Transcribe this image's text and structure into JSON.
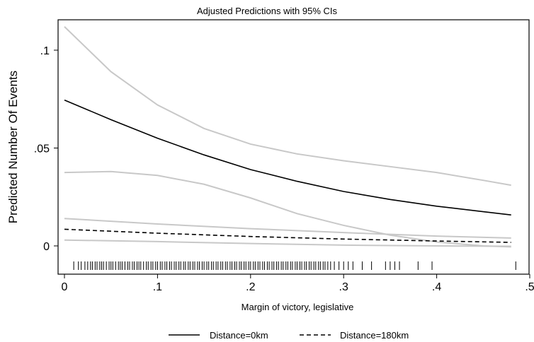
{
  "chart_data": {
    "type": "line",
    "title": "Adjusted Predictions with 95% CIs",
    "xlabel": "Margin of victory, legislative",
    "ylabel": "Predicted Number Of Events",
    "xlim": [
      0,
      0.485
    ],
    "ylim": [
      -0.01,
      0.11
    ],
    "x_ticks": [
      0,
      0.1,
      0.2,
      0.3,
      0.4,
      0.5
    ],
    "x_tick_labels": [
      "0",
      ".1",
      ".2",
      ".3",
      ".4",
      ".5"
    ],
    "y_ticks": [
      0,
      0.05,
      0.1
    ],
    "y_tick_labels": [
      "0",
      ".05",
      ".1"
    ],
    "grid": false,
    "legend_position": "bottom",
    "series": [
      {
        "name": "Distance=0km",
        "style": "solid",
        "color": "#000000",
        "x": [
          0,
          0.05,
          0.1,
          0.15,
          0.2,
          0.25,
          0.3,
          0.35,
          0.4,
          0.45,
          0.48
        ],
        "y": [
          0.0745,
          0.0645,
          0.055,
          0.0465,
          0.039,
          0.033,
          0.0278,
          0.0237,
          0.0203,
          0.0175,
          0.0158
        ]
      },
      {
        "name": "Distance=180km",
        "style": "dashed",
        "color": "#000000",
        "x": [
          0,
          0.1,
          0.2,
          0.3,
          0.4,
          0.48
        ],
        "y": [
          0.0085,
          0.0065,
          0.0048,
          0.0035,
          0.0025,
          0.0018
        ]
      }
    ],
    "confidence_bands": [
      {
        "series": "Distance=0km",
        "color": "#c8c8c8",
        "x": [
          0,
          0.05,
          0.1,
          0.15,
          0.2,
          0.25,
          0.3,
          0.35,
          0.4,
          0.45,
          0.48
        ],
        "upper": [
          0.112,
          0.089,
          0.072,
          0.06,
          0.052,
          0.047,
          0.0435,
          0.0405,
          0.0375,
          0.0335,
          0.031
        ],
        "lower": [
          0.0375,
          0.038,
          0.036,
          0.0315,
          0.0245,
          0.0165,
          0.0105,
          0.0055,
          0.002,
          0.0,
          -0.0005
        ]
      },
      {
        "series": "Distance=180km",
        "color": "#c8c8c8",
        "x": [
          0,
          0.1,
          0.2,
          0.3,
          0.4,
          0.48
        ],
        "upper": [
          0.014,
          0.0112,
          0.0088,
          0.0068,
          0.005,
          0.004
        ],
        "lower": [
          0.003,
          0.0022,
          0.0012,
          0.0004,
          0.0,
          -0.0002
        ]
      }
    ],
    "rug_x": [
      0.01,
      0.015,
      0.018,
      0.022,
      0.025,
      0.028,
      0.03,
      0.033,
      0.035,
      0.038,
      0.04,
      0.042,
      0.045,
      0.048,
      0.05,
      0.052,
      0.055,
      0.058,
      0.06,
      0.062,
      0.065,
      0.068,
      0.07,
      0.073,
      0.075,
      0.078,
      0.08,
      0.082,
      0.085,
      0.088,
      0.09,
      0.093,
      0.095,
      0.098,
      0.1,
      0.103,
      0.105,
      0.108,
      0.11,
      0.113,
      0.115,
      0.118,
      0.12,
      0.123,
      0.125,
      0.128,
      0.13,
      0.133,
      0.135,
      0.138,
      0.14,
      0.143,
      0.145,
      0.148,
      0.15,
      0.153,
      0.155,
      0.158,
      0.16,
      0.163,
      0.165,
      0.168,
      0.17,
      0.173,
      0.175,
      0.178,
      0.18,
      0.183,
      0.185,
      0.188,
      0.19,
      0.193,
      0.195,
      0.198,
      0.2,
      0.203,
      0.205,
      0.208,
      0.21,
      0.213,
      0.215,
      0.218,
      0.22,
      0.223,
      0.225,
      0.228,
      0.23,
      0.233,
      0.235,
      0.238,
      0.24,
      0.243,
      0.245,
      0.248,
      0.25,
      0.253,
      0.255,
      0.258,
      0.26,
      0.263,
      0.265,
      0.268,
      0.27,
      0.273,
      0.275,
      0.278,
      0.28,
      0.283,
      0.286,
      0.29,
      0.295,
      0.3,
      0.305,
      0.31,
      0.32,
      0.33,
      0.345,
      0.35,
      0.355,
      0.36,
      0.38,
      0.395,
      0.485
    ]
  },
  "legend": {
    "items": [
      {
        "label": "Distance=0km",
        "style": "solid"
      },
      {
        "label": "Distance=180km",
        "style": "dashed"
      }
    ]
  }
}
